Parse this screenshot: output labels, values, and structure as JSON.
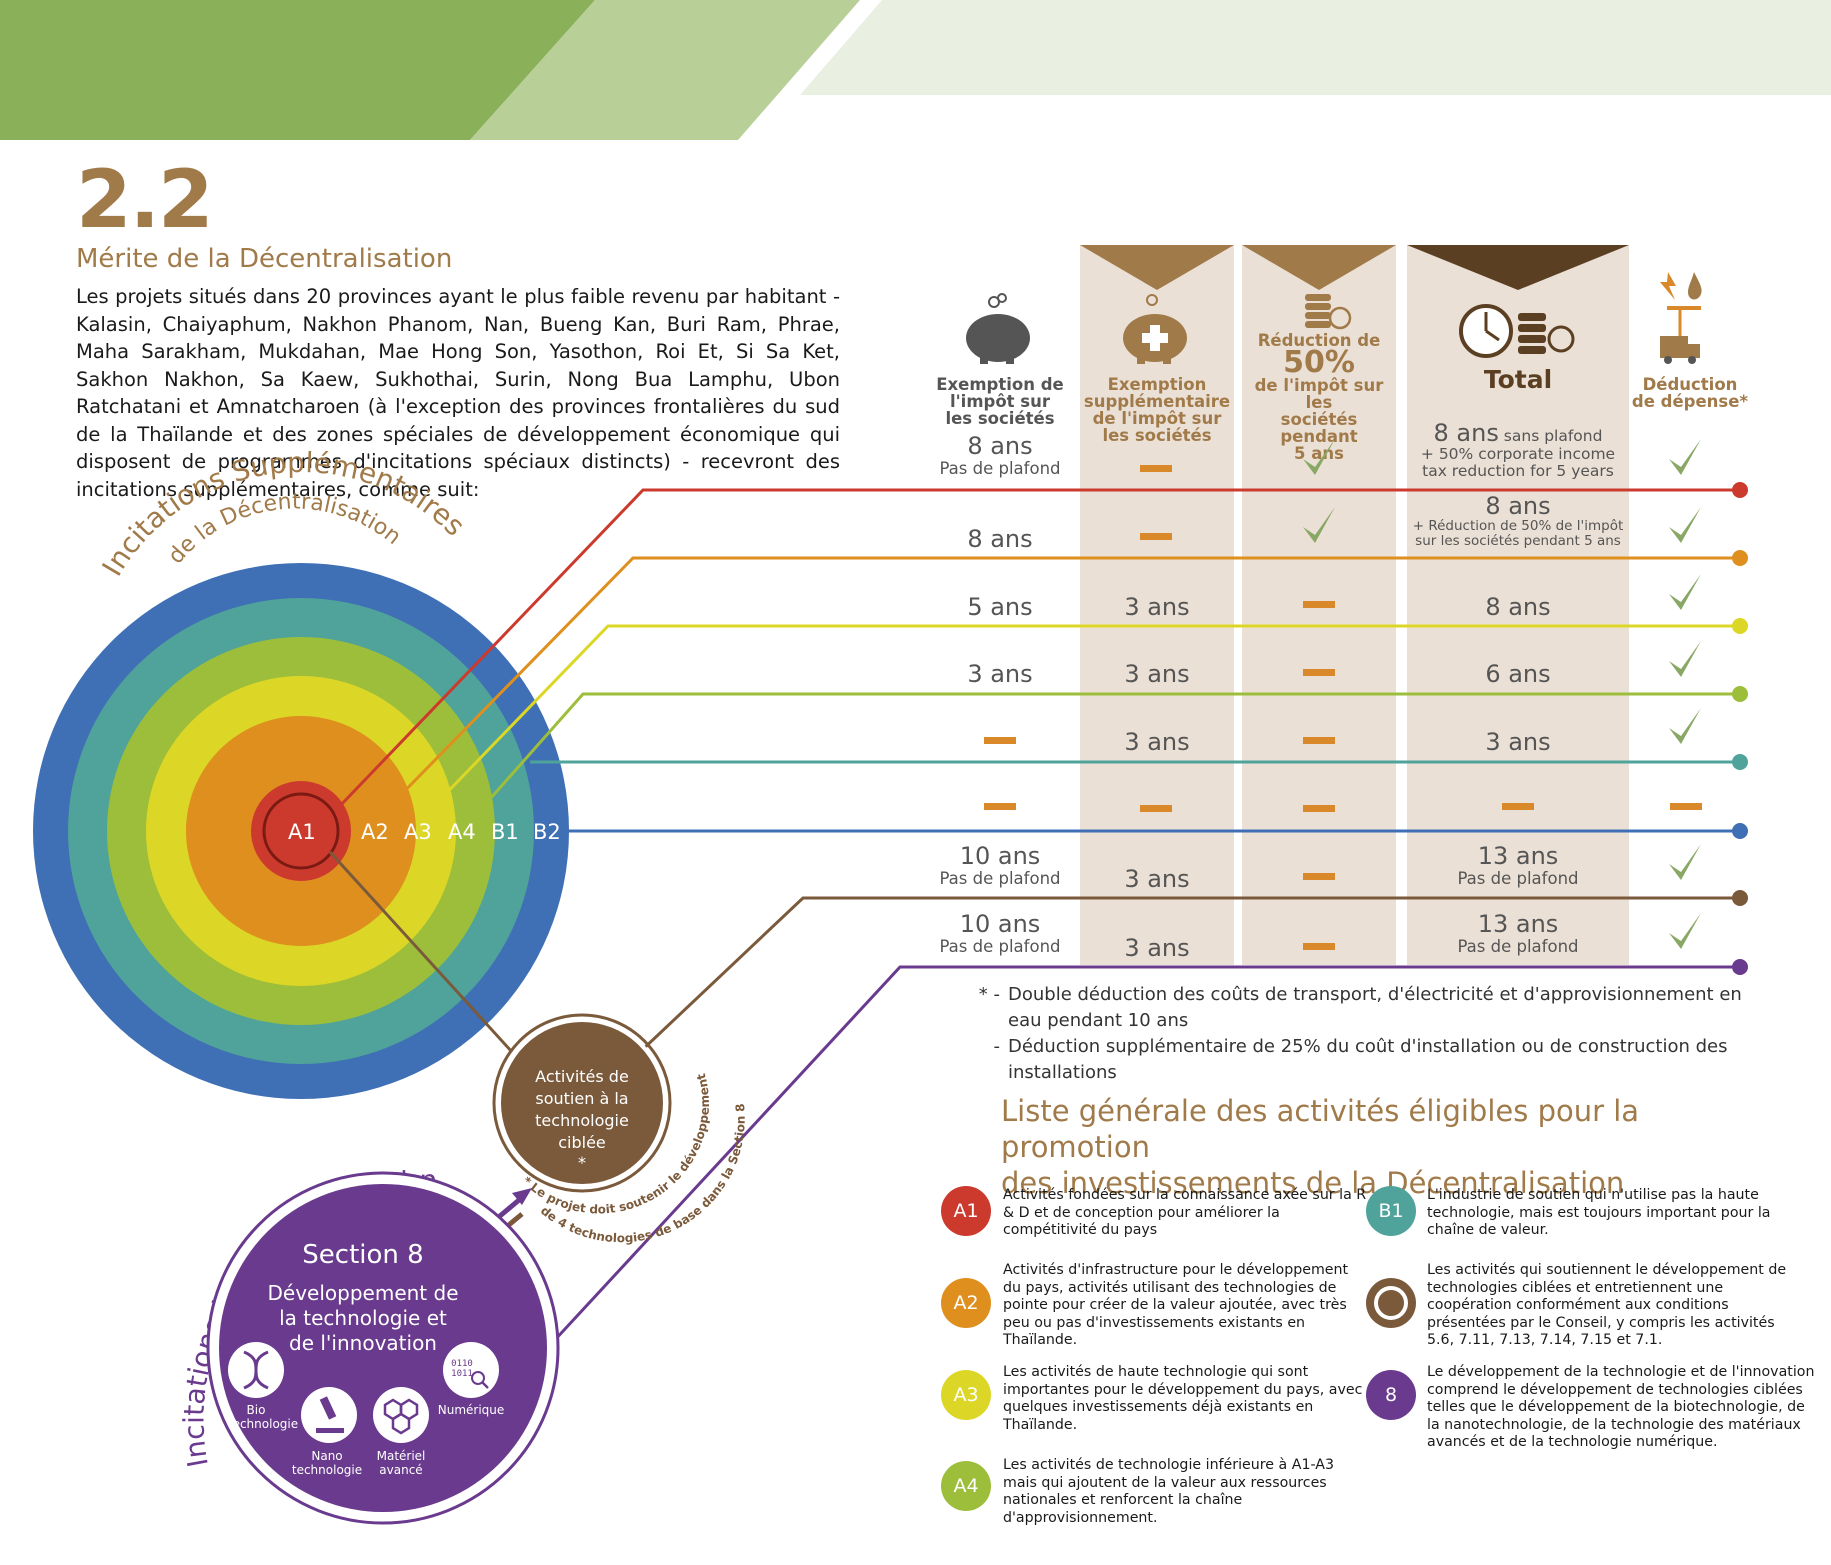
{
  "header": {
    "number": "2.2",
    "title": "Mérite de la Décentralisation"
  },
  "intro": "Les projets situés dans 20 provinces ayant le plus faible revenu par habitant - Kalasin, Chaiyaphum, Nakhon Phanom, Nan, Bueng Kan, Buri Ram, Phrae, Maha Sarakham, Mukdahan, Mae Hong Son, Yasothon, Roi Et, Si Sa Ket, Sakhon Nakhon, Sa Kaew, Sukhothai, Surin, Nong Bua Lamphu, Ubon Ratchatani et Amnatcharoen (à l'exception des provinces frontalières du sud de la Thaïlande et des zones spéciales de développement économique qui disposent de programmes d'incitations spéciaux distincts) - recevront des incitations supplémentaires, comme suit:",
  "arc_titles": {
    "decentral_line1": "Incitations Supplémentaires",
    "decentral_line2": "de la Décentralisation",
    "tech": "Incitations basés sur la technologie"
  },
  "rings": [
    "A1",
    "A2",
    "A3",
    "A4",
    "B1",
    "B2"
  ],
  "colors": {
    "A1": "#cc3a2e",
    "A2": "#df8f1e",
    "A3": "#dcd726",
    "A4": "#9dbe3a",
    "B1": "#4fa39a",
    "B2": "#3f6fb5",
    "C": "#7b5a3c",
    "S8": "#693a8d",
    "brown": "#a17a4a",
    "dash": "#d9892a",
    "check": "#8aa865"
  },
  "columns": {
    "c1": [
      "Exemption de",
      "l'impôt sur",
      "les sociétés"
    ],
    "c2": [
      "Exemption",
      "supplémentaire",
      "de l'impôt sur",
      "les sociétés"
    ],
    "c3": [
      "Réduction de",
      "50%",
      "de l'impôt sur les",
      "sociétés pendant",
      "5 ans"
    ],
    "c4": "Total",
    "c5": [
      "Déduction",
      "de dépense*"
    ]
  },
  "rows": [
    {
      "c1": "8 ans",
      "c1sub": "Pas de plafond",
      "c2": "-",
      "c3": "check",
      "c4": "8 ans",
      "c4a": "sans plafond",
      "c4b": "+ 50% corporate income",
      "c4c": "tax reduction for 5 years",
      "c5": "check"
    },
    {
      "c1": "8 ans",
      "c2": "-",
      "c3": "check",
      "c4": "8 ans",
      "c4b": "+ Réduction de 50% de l'impôt",
      "c4c": "sur les sociétés pendant 5 ans",
      "c5": "check"
    },
    {
      "c1": "5 ans",
      "c2": "3 ans",
      "c3": "-",
      "c4": "8 ans",
      "c5": "check"
    },
    {
      "c1": "3 ans",
      "c2": "3 ans",
      "c3": "-",
      "c4": "6 ans",
      "c5": "check"
    },
    {
      "c1": "-",
      "c2": "3 ans",
      "c3": "-",
      "c4": "3 ans",
      "c5": "check"
    },
    {
      "c1": "-",
      "c2": "-",
      "c3": "-",
      "c4": "-",
      "c5": "-"
    },
    {
      "c1": "10 ans",
      "c1sub": "Pas de plafond",
      "c2": "3 ans",
      "c3": "-",
      "c4": "13 ans",
      "c4sub": "Pas de plafond",
      "c5": "check"
    },
    {
      "c1": "10 ans",
      "c1sub": "Pas de plafond",
      "c2": "3 ans",
      "c3": "-",
      "c4": "13 ans",
      "c4sub": "Pas de plafond",
      "c5": "check"
    }
  ],
  "support_circle": {
    "lines": [
      "Activités de",
      "soutien à la",
      "technologie",
      "ciblée",
      "*"
    ],
    "arc_note_1": "* Le projet doit soutenir le développement",
    "arc_note_2": "de 4 technologies de base dans la Section 8"
  },
  "section8": {
    "title": "Section 8",
    "line1": "Développement de",
    "line2": "la technologie et",
    "line3": "de l'innovation",
    "icons": {
      "bio1": "Bio",
      "bio2": "technologie",
      "nano1": "Nano",
      "nano2": "technologie",
      "mat1": "Matériel",
      "mat2": "avancé",
      "num": "Numérique"
    }
  },
  "notes": [
    {
      "mark": "* -",
      "line1": "Double déduction des coûts de transport, d'électricité et d'approvisionnement en",
      "line2": "eau pendant 10 ans"
    },
    {
      "mark": "-",
      "line1": "Déduction supplémentaire de 25% du coût d'installation ou de construction des",
      "line2": "installations"
    }
  ],
  "list_title": {
    "line1": "Liste générale des activités éligibles pour la promotion",
    "line2": "des investissements de la Décentralisation"
  },
  "legend": [
    {
      "badge": "A1",
      "text": "Activités fondées sur la connaissance axée sur la R & D et de conception pour améliorer la compétitivité du pays"
    },
    {
      "badge": "A2",
      "text": "Activités d'infrastructure pour le développement du pays, activités utilisant des technologies de pointe pour créer de la valeur ajoutée, avec très peu ou pas d'investissements existants en Thaïlande."
    },
    {
      "badge": "A3",
      "text": "Les activités de haute technologie qui sont importantes pour le développement du pays, avec quelques investissements déjà existants en Thaïlande."
    },
    {
      "badge": "A4",
      "text": "Les activités de technologie inférieure à A1-A3 mais qui ajoutent de la valeur aux ressources nationales et renforcent la chaîne d'approvisionnement."
    },
    {
      "badge": "B1",
      "text": "L'industrie de soutien qui n'utilise pas la haute technologie, mais est toujours important pour la chaîne de valeur."
    },
    {
      "badge": "",
      "text": "Les activités qui soutiennent le développement de technologies ciblées et entretiennent une coopération conformément aux conditions présentées par le Conseil, y compris les activités 5.6, 7.11, 7.13, 7.14, 7.15 et 7.1."
    },
    {
      "badge": "8",
      "text": "Le développement de la technologie et de l'innovation comprend le développement de technologies ciblées telles que le développement de la biotechnologie, de la nanotechnologie, de la technologie des matériaux avancés et de la technologie numérique."
    }
  ]
}
